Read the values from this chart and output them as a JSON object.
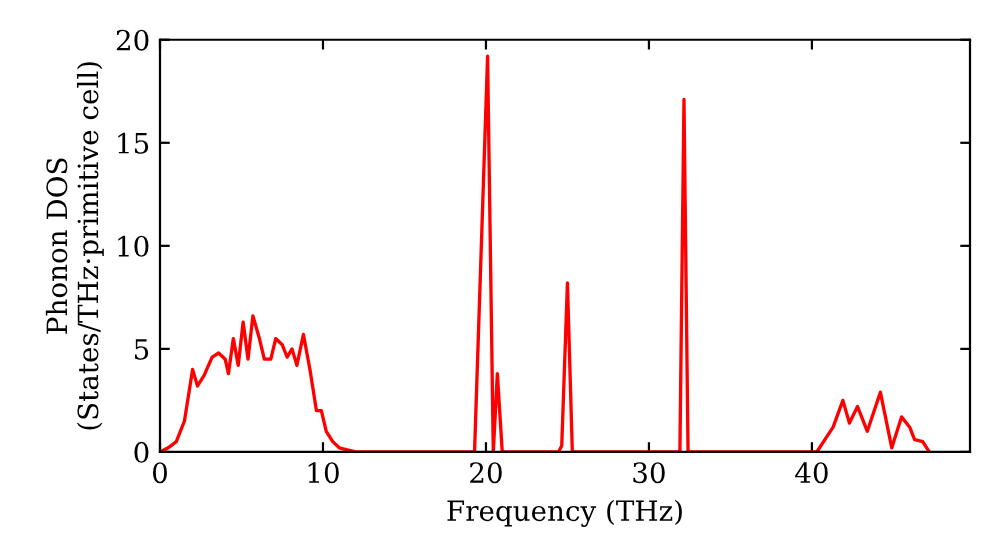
{
  "chart_data": {
    "type": "line",
    "xlabel": "Frequency (THz)",
    "ylabel": "Phonon DOS\n(States/THz·primitive cell)",
    "xlim": [
      0,
      49.7
    ],
    "ylim": [
      0,
      20
    ],
    "xticks": [
      0,
      10,
      20,
      30,
      40
    ],
    "yticks": [
      0,
      5,
      10,
      15,
      20
    ],
    "grid": false,
    "marker": "none",
    "line_style": "solid",
    "series": [
      {
        "color": "#ff0000",
        "x": [
          0,
          0.5,
          1,
          1.5,
          2,
          2.3,
          2.7,
          3.2,
          3.6,
          4,
          4.2,
          4.5,
          4.8,
          5.1,
          5.4,
          5.7,
          6.1,
          6.4,
          6.8,
          7.1,
          7.5,
          7.8,
          8.1,
          8.4,
          8.8,
          9.2,
          9.6,
          9.9,
          10.2,
          10.6,
          11,
          11.5,
          12,
          19.3,
          20.1,
          20.45,
          20.7,
          21.0,
          24.45,
          24.65,
          25.0,
          25.3,
          31.9,
          32.15,
          32.4,
          40.3,
          41.3,
          41.9,
          42.3,
          42.8,
          43.4,
          44.2,
          44.9,
          45.5,
          46.0,
          46.3,
          46.8,
          47.2
        ],
        "values": [
          0,
          0.2,
          0.5,
          1.5,
          4.0,
          3.2,
          3.7,
          4.6,
          4.8,
          4.5,
          3.8,
          5.5,
          4.2,
          6.3,
          4.5,
          6.6,
          5.5,
          4.5,
          4.5,
          5.5,
          5.2,
          4.6,
          5.0,
          4.2,
          5.7,
          4.0,
          2.0,
          2.0,
          1.0,
          0.5,
          0.2,
          0.1,
          0,
          0,
          19.2,
          0,
          3.8,
          0,
          0,
          0.3,
          8.2,
          0,
          0,
          17.1,
          0,
          0,
          1.2,
          2.5,
          1.4,
          2.2,
          1.0,
          2.9,
          0.2,
          1.7,
          1.2,
          0.6,
          0.5,
          0
        ]
      }
    ]
  }
}
